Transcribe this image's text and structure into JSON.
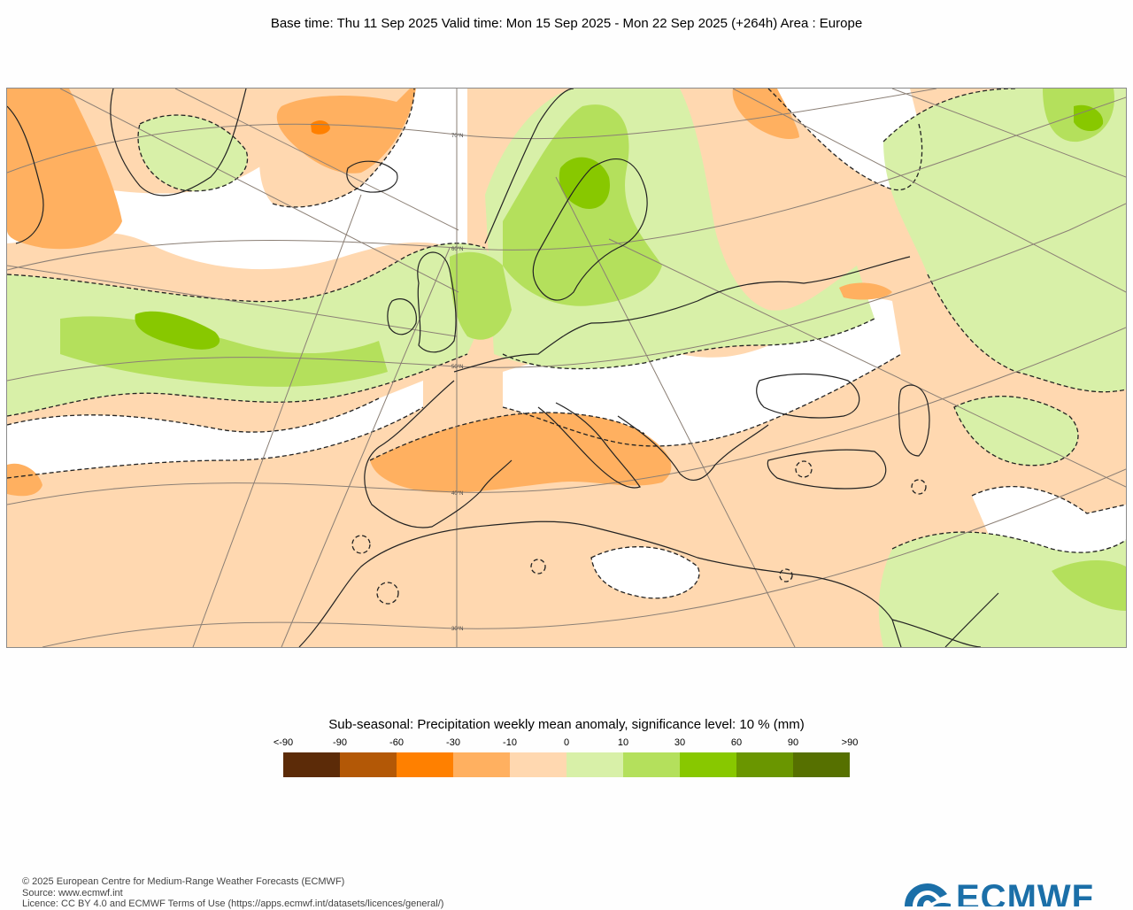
{
  "header": {
    "title": "Base time: Thu 11 Sep 2025 Valid time: Mon 15 Sep 2025 - Mon 22 Sep 2025 (+264h) Area : Europe"
  },
  "map": {
    "lat_labels": [
      "70°N",
      "60°N",
      "50°N",
      "40°N",
      "30°N"
    ],
    "colors": {
      "ocean_light_green": "#d8f0a8",
      "mid_green": "#b4e05c",
      "bright_green": "#88c800",
      "neutral_orange": "#ffd8b0",
      "mid_orange": "#ffb060",
      "white": "#ffffff",
      "coast": "#222222",
      "grid": "#8b7f75"
    }
  },
  "legend": {
    "title": "Sub-seasonal: Precipitation weekly mean anomaly, significance level: 10 % (mm)",
    "labels": [
      "<-90",
      "-90",
      "-60",
      "-30",
      "-10",
      "0",
      "10",
      "30",
      "60",
      "90",
      ">90"
    ],
    "colors": [
      "#5c2b08",
      "#b35806",
      "#ff8000",
      "#ffb060",
      "#ffd8b0",
      "#d8f0a8",
      "#b4e05c",
      "#88c800",
      "#6a9600",
      "#567000"
    ]
  },
  "footer": {
    "line1": "© 2025 European Centre for Medium-Range Weather Forecasts (ECMWF)",
    "line2": "Source: www.ecmwf.int",
    "line3": "Licence: CC BY 4.0 and ECMWF Terms of Use (https://apps.ecmwf.int/datasets/licences/general/)"
  },
  "logo": {
    "text": "ECMWF",
    "color": "#1b6fa8"
  }
}
